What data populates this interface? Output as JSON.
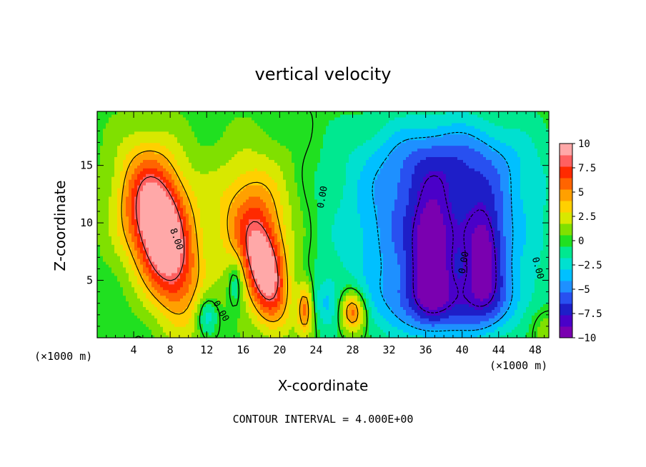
{
  "chart_data": {
    "type": "heatmap",
    "title": "vertical velocity",
    "xlabel": "X-coordinate",
    "ylabel": "Z-coordinate",
    "x_unit_label": "(×1000 m)",
    "x_ticks": [
      4,
      8,
      12,
      16,
      20,
      24,
      28,
      32,
      36,
      40,
      44,
      48
    ],
    "y_ticks": [
      5,
      10,
      15
    ],
    "xlim": [
      0,
      49.5
    ],
    "ylim": [
      0,
      19.7
    ],
    "colorbar": {
      "ticks": [
        "10",
        "7.5",
        "5",
        "2.5",
        "0",
        "−2.5",
        "−5",
        "−7.5",
        "−10"
      ],
      "range": [
        -10,
        10
      ],
      "colors": [
        "#7a00b0",
        "#4a00c8",
        "#1e1ec8",
        "#2850f0",
        "#1e90ff",
        "#00c0ff",
        "#00e0d0",
        "#00e890",
        "#20e020",
        "#80e000",
        "#d8e800",
        "#ffd000",
        "#ffa000",
        "#ff6400",
        "#ff2a00",
        "#ff6060",
        "#ffa8a8"
      ]
    },
    "contour_interval_text": "CONTOUR INTERVAL = 4.000E+00",
    "contour_labels": [
      {
        "text": "8.00",
        "x": 8.4,
        "z": 8.5,
        "rot": 70
      },
      {
        "text": "0.00",
        "x": 13.3,
        "z": 2.2,
        "rot": 60
      },
      {
        "text": "0.00",
        "x": 25.0,
        "z": 12.2,
        "rot": -80
      },
      {
        "text": "0.00",
        "x": 40.5,
        "z": 6.5,
        "rot": -80
      },
      {
        "text": "0.00",
        "x": 48.0,
        "z": 6.0,
        "rot": 75
      }
    ],
    "features": [
      {
        "amp": 9.0,
        "x": 7.5,
        "z": 8.0,
        "sx": 2.2,
        "sz": 4.5,
        "tilt": 0.25
      },
      {
        "amp": 5.0,
        "x": 6.0,
        "z": 11.5,
        "sx": 3.0,
        "sz": 4.0,
        "tilt": 0.0
      },
      {
        "amp": 9.0,
        "x": 18.5,
        "z": 5.5,
        "sx": 1.6,
        "sz": 3.2,
        "tilt": 0.2
      },
      {
        "amp": 5.0,
        "x": 17.0,
        "z": 10.5,
        "sx": 3.2,
        "sz": 4.0,
        "tilt": 0.0
      },
      {
        "amp": 7.0,
        "x": 28.0,
        "z": 2.3,
        "sx": 1.0,
        "sz": 1.3,
        "tilt": 0.0
      },
      {
        "amp": 5.5,
        "x": 22.8,
        "z": 2.5,
        "sx": 0.6,
        "sz": 1.6,
        "tilt": 0.0
      },
      {
        "amp": -3.5,
        "x": 12.0,
        "z": 2.0,
        "sx": 0.8,
        "sz": 1.2,
        "tilt": 0.0
      },
      {
        "amp": -3.0,
        "x": 15.2,
        "z": 5.0,
        "sx": 0.6,
        "sz": 1.5,
        "tilt": 0.0
      },
      {
        "amp": -2.5,
        "x": 25.2,
        "z": 3.0,
        "sx": 1.0,
        "sz": 1.5,
        "tilt": 0.0
      },
      {
        "amp": -6.5,
        "x": 37.5,
        "z": 9.5,
        "sx": 7.0,
        "sz": 5.0,
        "tilt": 0.0
      },
      {
        "amp": -4.5,
        "x": 38.5,
        "z": 3.0,
        "sx": 5.5,
        "sz": 2.0,
        "tilt": 0.0
      },
      {
        "amp": -3.5,
        "x": 38.5,
        "z": 15.5,
        "sx": 6.0,
        "sz": 2.5,
        "tilt": 0.0
      },
      {
        "amp": -5.0,
        "x": 36.5,
        "z": 7.0,
        "sx": 1.5,
        "sz": 3.5,
        "tilt": 0.0
      },
      {
        "amp": -5.0,
        "x": 42.5,
        "z": 7.0,
        "sx": 1.5,
        "sz": 3.5,
        "tilt": 0.0
      },
      {
        "amp": 1.8,
        "x": 49.0,
        "z": 1.0,
        "sx": 1.5,
        "sz": 1.5,
        "tilt": 0.0
      }
    ]
  }
}
